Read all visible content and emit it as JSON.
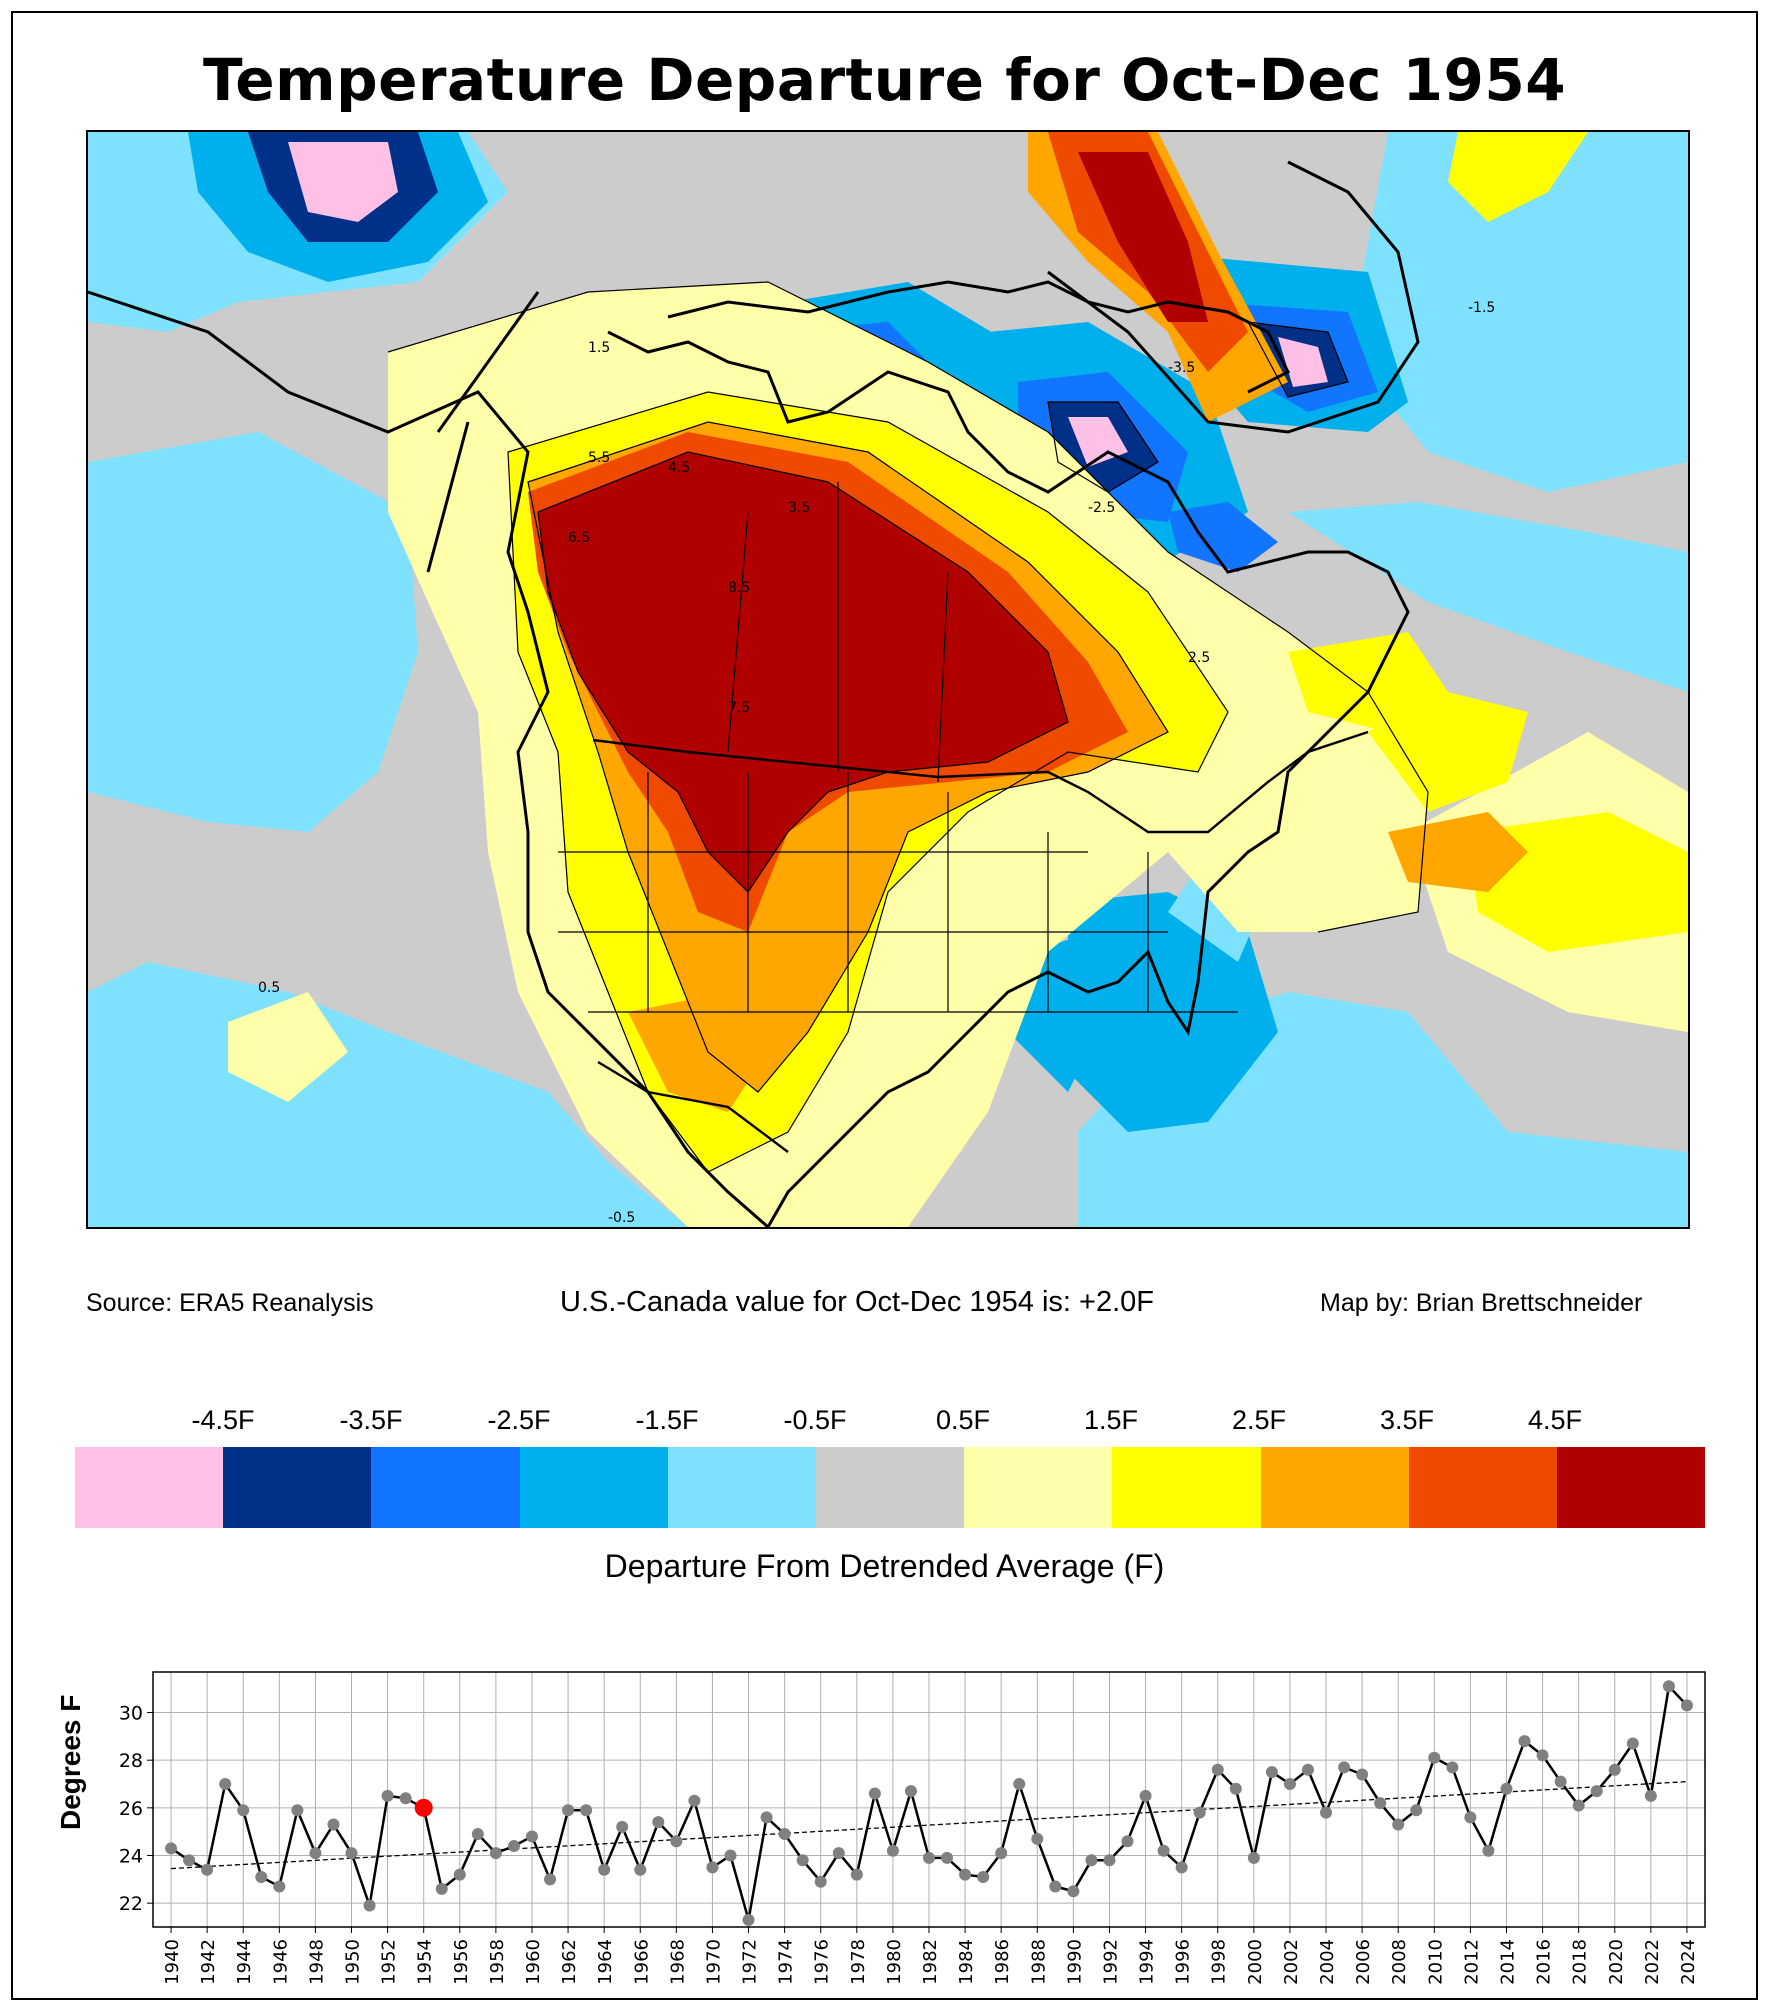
{
  "title": "Temperature Departure for Oct-Dec 1954",
  "source": "Source: ERA5 Reanalysis",
  "summary": "U.S.-Canada value for Oct-Dec 1954 is: +2.0F",
  "credit": "Map by: Brian Brettschneider",
  "map": {
    "contour_labels": [
      "1.5",
      "2.5",
      "3.5",
      "4.5",
      "5.5",
      "6.5",
      "7.5",
      "8.5",
      "0.5",
      "-0.5",
      "-1.5",
      "-2.5",
      "-3.5"
    ]
  },
  "legend": {
    "title": "Departure From Detrended Average (F)",
    "labels": [
      "-4.5F",
      "-3.5F",
      "-2.5F",
      "-1.5F",
      "-0.5F",
      "0.5F",
      "1.5F",
      "2.5F",
      "3.5F",
      "4.5F"
    ],
    "colors": [
      "#ffc0e6",
      "#003087",
      "#1175ff",
      "#00b0ec",
      "#7ee2ff",
      "#cccccc",
      "#ffffaa",
      "#ffff00",
      "#ffa700",
      "#f04a00",
      "#b00000"
    ]
  },
  "chart_data": {
    "type": "line",
    "ylabel": "Degrees F",
    "ylim": [
      21,
      31.7
    ],
    "yticks": [
      22,
      24,
      26,
      28,
      30
    ],
    "xlim": [
      1939,
      2025
    ],
    "x": [
      1940,
      1941,
      1942,
      1943,
      1944,
      1945,
      1946,
      1947,
      1948,
      1949,
      1950,
      1951,
      1952,
      1953,
      1954,
      1955,
      1956,
      1957,
      1958,
      1959,
      1960,
      1961,
      1962,
      1963,
      1964,
      1965,
      1966,
      1967,
      1968,
      1969,
      1970,
      1971,
      1972,
      1973,
      1974,
      1975,
      1976,
      1977,
      1978,
      1979,
      1980,
      1981,
      1982,
      1983,
      1984,
      1985,
      1986,
      1987,
      1988,
      1989,
      1990,
      1991,
      1992,
      1993,
      1994,
      1995,
      1996,
      1997,
      1998,
      1999,
      2000,
      2001,
      2002,
      2003,
      2004,
      2005,
      2006,
      2007,
      2008,
      2009,
      2010,
      2011,
      2012,
      2013,
      2014,
      2015,
      2016,
      2017,
      2018,
      2019,
      2020,
      2021,
      2022,
      2023,
      2024
    ],
    "values": [
      24.3,
      23.8,
      23.4,
      27.0,
      25.9,
      23.1,
      22.7,
      25.9,
      24.1,
      25.3,
      24.1,
      21.9,
      26.5,
      26.4,
      26.0,
      22.6,
      23.2,
      24.9,
      24.1,
      24.4,
      24.8,
      23.0,
      25.9,
      25.9,
      23.4,
      25.2,
      23.4,
      25.4,
      24.6,
      26.3,
      23.5,
      24.0,
      21.3,
      25.6,
      24.9,
      23.8,
      22.9,
      24.1,
      23.2,
      26.6,
      24.2,
      26.7,
      23.9,
      23.9,
      23.2,
      23.1,
      24.1,
      27.0,
      24.7,
      22.7,
      22.5,
      23.8,
      23.8,
      24.6,
      26.5,
      24.2,
      23.5,
      25.8,
      27.6,
      26.8,
      23.9,
      27.5,
      27.0,
      27.6,
      25.8,
      27.7,
      27.4,
      26.2,
      25.3,
      25.9,
      28.1,
      27.7,
      25.6,
      24.2,
      26.8,
      28.8,
      28.2,
      27.1,
      26.1,
      26.7,
      27.6,
      28.7,
      26.5,
      31.1,
      30.3
    ],
    "highlight": {
      "x": 1954,
      "value": 26.0
    },
    "trend": {
      "start": [
        1940,
        23.45
      ],
      "end": [
        2024,
        27.1
      ]
    },
    "xticks": [
      1940,
      1942,
      1944,
      1946,
      1948,
      1950,
      1952,
      1954,
      1956,
      1958,
      1960,
      1962,
      1964,
      1966,
      1968,
      1970,
      1972,
      1974,
      1976,
      1978,
      1980,
      1982,
      1984,
      1986,
      1988,
      1990,
      1992,
      1994,
      1996,
      1998,
      2000,
      2002,
      2004,
      2006,
      2008,
      2010,
      2012,
      2014,
      2016,
      2018,
      2020,
      2022,
      2024
    ]
  }
}
